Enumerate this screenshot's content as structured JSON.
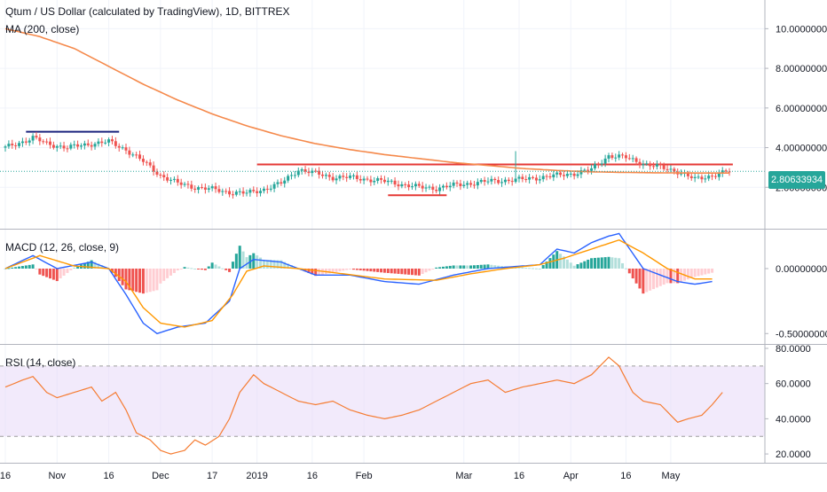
{
  "header": {
    "title": "Qtum / US Dollar (calculated by TradingView), 1D, BITTREX",
    "ma_label": "MA (200, close)",
    "macd_label": "MACD (12, 26, close, 9)",
    "rsi_label": "RSI (14, close)",
    "last_price": "2.80633934"
  },
  "colors": {
    "up": "#26a69a",
    "down": "#ef5350",
    "ma": "#f5894b",
    "macd": "#2962ff",
    "signal": "#ff9800",
    "rsi": "#f57c32",
    "rsi_band": "#e8d9f7",
    "hline_blue": "#1a237e",
    "hline_red": "#e53935"
  },
  "chart_data": [
    {
      "type": "candlestick",
      "name": "price",
      "title": "Qtum / US Dollar (calculated by TradingView), 1D, BITTREX",
      "x_ticks": [
        "16",
        "Nov",
        "16",
        "Dec",
        "17",
        "2019",
        "16",
        "Feb",
        "Mar",
        "16",
        "Apr",
        "16",
        "May"
      ],
      "y_ticks": [
        "2.00000000",
        "4.00000000",
        "6.00000000",
        "8.00000000",
        "10.00000000"
      ],
      "ylim": [
        0,
        11
      ],
      "days": 211,
      "close_knots": [
        [
          0,
          4.0
        ],
        [
          5,
          4.3
        ],
        [
          8,
          4.5
        ],
        [
          12,
          4.2
        ],
        [
          18,
          4.0
        ],
        [
          25,
          4.2
        ],
        [
          30,
          4.3
        ],
        [
          35,
          3.9
        ],
        [
          40,
          3.3
        ],
        [
          45,
          2.6
        ],
        [
          50,
          2.2
        ],
        [
          55,
          2.0
        ],
        [
          60,
          1.9
        ],
        [
          65,
          1.75
        ],
        [
          70,
          1.7
        ],
        [
          75,
          1.9
        ],
        [
          80,
          2.2
        ],
        [
          85,
          2.9
        ],
        [
          90,
          2.7
        ],
        [
          95,
          2.5
        ],
        [
          100,
          2.5
        ],
        [
          105,
          2.4
        ],
        [
          110,
          2.3
        ],
        [
          115,
          2.15
        ],
        [
          120,
          2.0
        ],
        [
          125,
          1.95
        ],
        [
          130,
          2.1
        ],
        [
          135,
          2.2
        ],
        [
          140,
          2.3
        ],
        [
          145,
          2.35
        ],
        [
          150,
          2.4
        ],
        [
          155,
          2.5
        ],
        [
          160,
          2.6
        ],
        [
          165,
          2.7
        ],
        [
          170,
          2.9
        ],
        [
          175,
          3.6
        ],
        [
          180,
          3.5
        ],
        [
          185,
          3.2
        ],
        [
          190,
          3.0
        ],
        [
          195,
          2.8
        ],
        [
          200,
          2.4
        ],
        [
          205,
          2.6
        ],
        [
          210,
          2.81
        ]
      ],
      "ma200_knots": [
        [
          0,
          10.0
        ],
        [
          10,
          9.6
        ],
        [
          20,
          9.0
        ],
        [
          30,
          8.1
        ],
        [
          40,
          7.2
        ],
        [
          50,
          6.4
        ],
        [
          60,
          5.7
        ],
        [
          70,
          5.1
        ],
        [
          80,
          4.6
        ],
        [
          90,
          4.2
        ],
        [
          100,
          3.9
        ],
        [
          110,
          3.65
        ],
        [
          120,
          3.45
        ],
        [
          130,
          3.25
        ],
        [
          140,
          3.1
        ],
        [
          150,
          2.95
        ],
        [
          160,
          2.85
        ],
        [
          170,
          2.78
        ],
        [
          180,
          2.75
        ],
        [
          190,
          2.73
        ],
        [
          200,
          2.72
        ],
        [
          210,
          2.72
        ]
      ],
      "last_price": 2.80633934,
      "horizontal_lines": [
        {
          "from_day": 6,
          "to_day": 33,
          "value": 4.8,
          "color": "blue"
        },
        {
          "from_day": 73,
          "to_day": 211,
          "value": 3.15,
          "color": "red"
        },
        {
          "from_day": 111,
          "to_day": 128,
          "value": 1.6,
          "color": "red"
        }
      ]
    },
    {
      "type": "line",
      "name": "macd",
      "title": "MACD (12, 26, close, 9)",
      "y_ticks": [
        "0.00000000",
        "-0.50000000"
      ],
      "ylim": [
        -0.58,
        0.3
      ],
      "series": [
        {
          "name": "macd",
          "knots": [
            [
              0,
              0.0
            ],
            [
              8,
              0.1
            ],
            [
              15,
              0.0
            ],
            [
              25,
              0.05
            ],
            [
              30,
              0.0
            ],
            [
              35,
              -0.2
            ],
            [
              40,
              -0.42
            ],
            [
              44,
              -0.5
            ],
            [
              50,
              -0.45
            ],
            [
              58,
              -0.42
            ],
            [
              65,
              -0.25
            ],
            [
              68,
              0.0
            ],
            [
              72,
              0.07
            ],
            [
              80,
              0.05
            ],
            [
              90,
              -0.05
            ],
            [
              100,
              -0.05
            ],
            [
              110,
              -0.1
            ],
            [
              120,
              -0.12
            ],
            [
              130,
              -0.05
            ],
            [
              140,
              0.0
            ],
            [
              150,
              0.02
            ],
            [
              155,
              0.03
            ],
            [
              160,
              0.15
            ],
            [
              165,
              0.12
            ],
            [
              170,
              0.2
            ],
            [
              175,
              0.25
            ],
            [
              178,
              0.27
            ],
            [
              185,
              0.0
            ],
            [
              190,
              -0.05
            ],
            [
              195,
              -0.1
            ],
            [
              200,
              -0.12
            ],
            [
              205,
              -0.1
            ]
          ]
        },
        {
          "name": "signal",
          "knots": [
            [
              0,
              0.0
            ],
            [
              10,
              0.1
            ],
            [
              20,
              0.02
            ],
            [
              30,
              0.0
            ],
            [
              35,
              -0.1
            ],
            [
              40,
              -0.3
            ],
            [
              45,
              -0.42
            ],
            [
              52,
              -0.45
            ],
            [
              60,
              -0.4
            ],
            [
              66,
              -0.2
            ],
            [
              70,
              -0.02
            ],
            [
              75,
              0.02
            ],
            [
              85,
              0.0
            ],
            [
              95,
              -0.03
            ],
            [
              110,
              -0.08
            ],
            [
              125,
              -0.09
            ],
            [
              135,
              -0.04
            ],
            [
              145,
              0.0
            ],
            [
              155,
              0.03
            ],
            [
              162,
              0.08
            ],
            [
              170,
              0.15
            ],
            [
              178,
              0.22
            ],
            [
              185,
              0.12
            ],
            [
              192,
              0.0
            ],
            [
              200,
              -0.08
            ],
            [
              205,
              -0.08
            ]
          ]
        }
      ]
    },
    {
      "type": "line",
      "name": "rsi",
      "title": "RSI (14, close)",
      "y_ticks": [
        "20.0000",
        "40.0000",
        "60.0000",
        "80.0000"
      ],
      "ylim": [
        15,
        82
      ],
      "band": [
        30,
        70
      ],
      "knots": [
        [
          0,
          58
        ],
        [
          5,
          62
        ],
        [
          8,
          64
        ],
        [
          12,
          55
        ],
        [
          15,
          52
        ],
        [
          20,
          55
        ],
        [
          25,
          58
        ],
        [
          28,
          50
        ],
        [
          32,
          55
        ],
        [
          35,
          45
        ],
        [
          38,
          32
        ],
        [
          42,
          28
        ],
        [
          45,
          22
        ],
        [
          48,
          20
        ],
        [
          52,
          22
        ],
        [
          55,
          28
        ],
        [
          58,
          25
        ],
        [
          62,
          30
        ],
        [
          65,
          40
        ],
        [
          68,
          55
        ],
        [
          72,
          65
        ],
        [
          75,
          60
        ],
        [
          80,
          55
        ],
        [
          85,
          50
        ],
        [
          90,
          48
        ],
        [
          95,
          50
        ],
        [
          100,
          45
        ],
        [
          105,
          42
        ],
        [
          110,
          40
        ],
        [
          115,
          42
        ],
        [
          120,
          45
        ],
        [
          125,
          50
        ],
        [
          130,
          55
        ],
        [
          135,
          60
        ],
        [
          140,
          62
        ],
        [
          145,
          55
        ],
        [
          150,
          58
        ],
        [
          155,
          60
        ],
        [
          160,
          62
        ],
        [
          165,
          60
        ],
        [
          170,
          65
        ],
        [
          175,
          75
        ],
        [
          178,
          70
        ],
        [
          182,
          55
        ],
        [
          185,
          50
        ],
        [
          190,
          48
        ],
        [
          195,
          38
        ],
        [
          198,
          40
        ],
        [
          202,
          42
        ],
        [
          205,
          48
        ],
        [
          208,
          55
        ]
      ]
    }
  ]
}
